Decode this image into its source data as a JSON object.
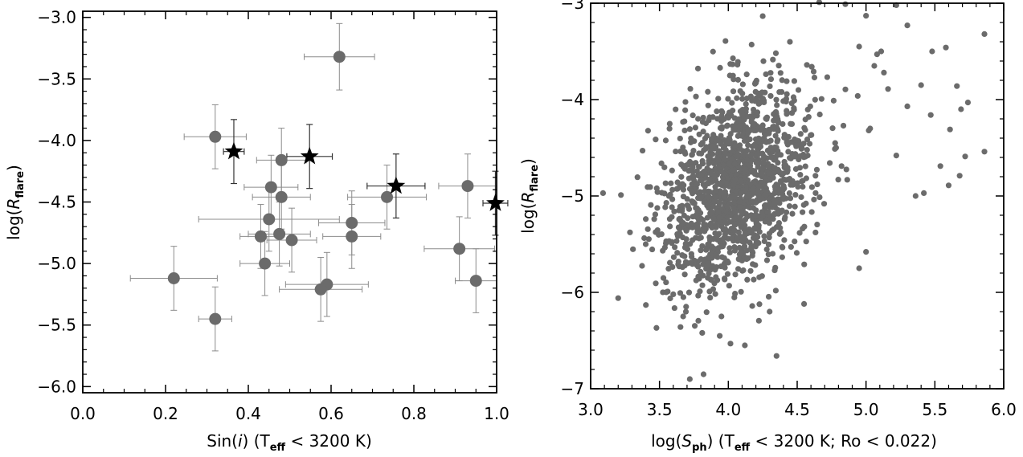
{
  "chart_data": [
    {
      "type": "scatter",
      "id": "left",
      "xlabel_parts": [
        "Sin(",
        "i",
        ")  (T",
        "eff",
        " < 3200 K)"
      ],
      "ylabel_parts": [
        "log(",
        "R",
        "flare",
        ")"
      ],
      "xlim": [
        0.0,
        1.0
      ],
      "ylim": [
        -6.05,
        -2.95
      ],
      "xticks": [
        {
          "value": 0.0,
          "label": "0.0"
        },
        {
          "value": 0.2,
          "label": "0.2"
        },
        {
          "value": 0.4,
          "label": "0.4"
        },
        {
          "value": 0.6,
          "label": "0.6"
        },
        {
          "value": 0.8,
          "label": "0.8"
        },
        {
          "value": 1.0,
          "label": "1.0"
        }
      ],
      "yticks": [
        {
          "value": -3.0,
          "label": "−3.0"
        },
        {
          "value": -3.5,
          "label": "−3.5"
        },
        {
          "value": -4.0,
          "label": "−4.0"
        },
        {
          "value": -4.5,
          "label": "−4.5"
        },
        {
          "value": -5.0,
          "label": "−5.0"
        },
        {
          "value": -5.5,
          "label": "−5.5"
        },
        {
          "value": -6.0,
          "label": "−6.0"
        }
      ],
      "series": [
        {
          "name": "stars",
          "marker": "circle",
          "color": "#6b6b6b",
          "errcolor": "#8c8c8c",
          "points": [
            {
              "x": 0.62,
              "y": -3.32,
              "xerr": 0.085,
              "yerr": 0.27
            },
            {
              "x": 0.32,
              "y": -3.97,
              "xerr": 0.075,
              "yerr": 0.26
            },
            {
              "x": 0.48,
              "y": -4.16,
              "xerr": 0.06,
              "yerr": 0.26
            },
            {
              "x": 0.455,
              "y": -4.38,
              "xerr": 0.065,
              "yerr": 0.26
            },
            {
              "x": 0.48,
              "y": -4.46,
              "xerr": 0.07,
              "yerr": 0.26
            },
            {
              "x": 0.735,
              "y": -4.46,
              "xerr": 0.095,
              "yerr": 0.26
            },
            {
              "x": 0.93,
              "y": -4.37,
              "xerr": 0.07,
              "yerr": 0.26
            },
            {
              "x": 0.45,
              "y": -4.64,
              "xerr": 0.17,
              "yerr": 0.26
            },
            {
              "x": 0.65,
              "y": -4.67,
              "xerr": 0.08,
              "yerr": 0.26
            },
            {
              "x": 0.43,
              "y": -4.78,
              "xerr": 0.05,
              "yerr": 0.26
            },
            {
              "x": 0.475,
              "y": -4.76,
              "xerr": 0.075,
              "yerr": 0.26
            },
            {
              "x": 0.505,
              "y": -4.81,
              "xerr": 0.06,
              "yerr": 0.26
            },
            {
              "x": 0.65,
              "y": -4.78,
              "xerr": 0.07,
              "yerr": 0.26
            },
            {
              "x": 0.44,
              "y": -5.0,
              "xerr": 0.06,
              "yerr": 0.26
            },
            {
              "x": 0.91,
              "y": -4.88,
              "xerr": 0.085,
              "yerr": 0.26
            },
            {
              "x": 0.22,
              "y": -5.12,
              "xerr": 0.105,
              "yerr": 0.26
            },
            {
              "x": 0.59,
              "y": -5.17,
              "xerr": 0.1,
              "yerr": 0.26
            },
            {
              "x": 0.575,
              "y": -5.21,
              "xerr": 0.1,
              "yerr": 0.26
            },
            {
              "x": 0.95,
              "y": -5.14,
              "xerr": 0.05,
              "yerr": 0.26
            },
            {
              "x": 0.32,
              "y": -5.45,
              "xerr": 0.04,
              "yerr": 0.26
            }
          ]
        },
        {
          "name": "highlighted",
          "marker": "star",
          "color": "#000000",
          "errcolor": "#333333",
          "points": [
            {
              "x": 0.365,
              "y": -4.09,
              "xerr": 0.025,
              "yerr": 0.26
            },
            {
              "x": 0.548,
              "y": -4.13,
              "xerr": 0.055,
              "yerr": 0.26
            },
            {
              "x": 0.757,
              "y": -4.37,
              "xerr": 0.07,
              "yerr": 0.26
            },
            {
              "x": 0.997,
              "y": -4.51,
              "xerr": 0.03,
              "yerr": 0.26
            }
          ]
        }
      ]
    },
    {
      "type": "scatter",
      "id": "right",
      "xlabel_parts": [
        "log(",
        "S",
        "ph",
        ")  (T",
        "eff",
        " < 3200 K; Ro < 0.022)"
      ],
      "ylabel_parts": [
        "log(",
        "R",
        "flare",
        ")"
      ],
      "xlim": [
        3.0,
        6.0
      ],
      "ylim": [
        -7.0,
        -3.0
      ],
      "xticks": [
        {
          "value": 3.0,
          "label": "3.0"
        },
        {
          "value": 3.5,
          "label": "3.5"
        },
        {
          "value": 4.0,
          "label": "4.0"
        },
        {
          "value": 4.5,
          "label": "4.5"
        },
        {
          "value": 5.0,
          "label": "5.0"
        },
        {
          "value": 5.5,
          "label": "5.5"
        },
        {
          "value": 6.0,
          "label": "6.0"
        }
      ],
      "yticks": [
        {
          "value": -3,
          "label": "−3"
        },
        {
          "value": -4,
          "label": "−4"
        },
        {
          "value": -5,
          "label": "−5"
        },
        {
          "value": -6,
          "label": "−6"
        },
        {
          "value": -7,
          "label": "−7"
        }
      ],
      "cloud": {
        "n": 1500,
        "x_mean": 4.07,
        "x_sd": 0.27,
        "y_mean": -4.88,
        "y_sd": 0.52,
        "correlation": 0.32,
        "color": "#6b6b6b"
      },
      "outliers": [
        [
          3.09,
          -4.97
        ],
        [
          3.22,
          -4.99
        ],
        [
          3.2,
          -6.06
        ],
        [
          3.72,
          -6.9
        ],
        [
          3.82,
          -6.85
        ],
        [
          4.35,
          -6.66
        ],
        [
          4.12,
          -6.55
        ],
        [
          4.66,
          -2.99
        ],
        [
          4.85,
          -3.01
        ],
        [
          5.0,
          -3.13
        ],
        [
          5.08,
          -3.53
        ],
        [
          5.22,
          -3.02
        ],
        [
          5.3,
          -3.23
        ],
        [
          5.48,
          -3.5
        ],
        [
          5.58,
          -3.46
        ],
        [
          5.86,
          -3.32
        ],
        [
          5.4,
          -3.85
        ],
        [
          5.66,
          -3.86
        ],
        [
          5.74,
          -4.03
        ],
        [
          5.69,
          -4.1
        ],
        [
          5.3,
          -4.07
        ],
        [
          5.47,
          -4.16
        ],
        [
          5.61,
          -4.31
        ],
        [
          5.54,
          -4.69
        ],
        [
          5.86,
          -4.54
        ],
        [
          5.68,
          -4.79
        ],
        [
          5.72,
          -4.59
        ],
        [
          5.36,
          -5.0
        ],
        [
          5.42,
          -4.97
        ],
        [
          5.6,
          -4.89
        ],
        [
          5.0,
          -5.58
        ],
        [
          4.95,
          -5.75
        ],
        [
          5.03,
          -4.3
        ],
        [
          5.02,
          -4.32
        ],
        [
          5.16,
          -3.89
        ],
        [
          5.22,
          -4.58
        ],
        [
          5.11,
          -3.5
        ],
        [
          5.06,
          -3.65
        ],
        [
          5.13,
          -3.72
        ],
        [
          4.95,
          -3.45
        ],
        [
          4.3,
          -6.2
        ],
        [
          3.95,
          -6.25
        ],
        [
          4.55,
          -6.12
        ],
        [
          3.6,
          -6.02
        ],
        [
          3.4,
          -5.5
        ]
      ]
    }
  ]
}
